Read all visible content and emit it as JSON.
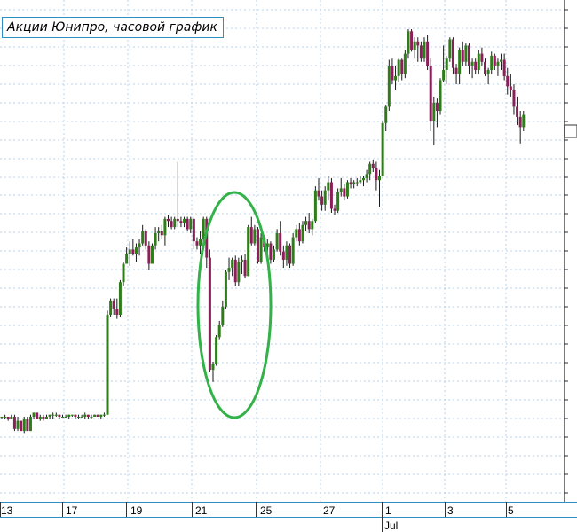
{
  "chart_data": {
    "type": "candlestick",
    "title": "Акции Юнипро, часовой график",
    "x_tick_labels": [
      "13",
      "17",
      "19",
      "21",
      "23",
      "25",
      "27",
      "1",
      "3",
      "5"
    ],
    "month_label": "Jul",
    "y_axis_labels_visible": false,
    "grid": true,
    "colors": {
      "up": "#2e7d1a",
      "down": "#8c1f5a",
      "flat": "#2e7d1a",
      "grid": "#b8d1e8",
      "axis": "#2e8fc4",
      "annotation": "#33b24a"
    },
    "annotation": {
      "type": "ellipse",
      "color": "#33b24a"
    },
    "candles": [
      [
        0.0,
        0.0,
        -1.0,
        0.0
      ],
      [
        0.0,
        1.0,
        -1.0,
        0.0
      ],
      [
        0.0,
        0.0,
        -2.0,
        -1.0
      ],
      [
        -1.0,
        1.0,
        -1.0,
        0.0
      ],
      [
        0.0,
        1.0,
        -7.0,
        -6.0
      ],
      [
        -6.0,
        0.0,
        -7.0,
        -2.0
      ],
      [
        -2.0,
        -2.0,
        -7.0,
        -7.0
      ],
      [
        -7.0,
        0.0,
        -8.0,
        -1.0
      ],
      [
        -1.0,
        0.0,
        -7.0,
        -7.0
      ],
      [
        -7.0,
        1.0,
        -7.0,
        0.0
      ],
      [
        0.0,
        2.0,
        -1.0,
        2.0
      ],
      [
        2.0,
        2.0,
        -1.0,
        -1.0
      ],
      [
        -1.0,
        1.0,
        -2.0,
        0.0
      ],
      [
        0.0,
        1.0,
        -2.0,
        -1.0
      ],
      [
        -1.0,
        1.0,
        -1.0,
        0.0
      ],
      [
        0.0,
        1.0,
        -1.0,
        1.0
      ],
      [
        1.0,
        2.0,
        -1.0,
        1.0
      ],
      [
        1.0,
        2.0,
        0.0,
        1.0
      ],
      [
        1.0,
        1.0,
        -1.0,
        0.0
      ],
      [
        0.0,
        1.0,
        0.0,
        0.0
      ],
      [
        0.0,
        1.0,
        0.0,
        0.0
      ],
      [
        0.0,
        1.0,
        -1.0,
        1.0
      ],
      [
        1.0,
        1.0,
        0.0,
        1.0
      ],
      [
        1.0,
        1.0,
        -1.0,
        0.0
      ],
      [
        0.0,
        1.0,
        -1.0,
        0.0
      ],
      [
        0.0,
        1.0,
        0.0,
        0.0
      ],
      [
        0.0,
        2.0,
        -1.0,
        1.0
      ],
      [
        1.0,
        1.0,
        -1.0,
        0.0
      ],
      [
        0.0,
        1.0,
        -1.0,
        0.0
      ],
      [
        0.0,
        1.0,
        0.0,
        1.0
      ],
      [
        1.0,
        1.0,
        0.0,
        0.0
      ],
      [
        0.0,
        1.0,
        -1.0,
        1.0
      ],
      [
        1.0,
        2.0,
        0.0,
        1.0
      ],
      [
        1.0,
        52.0,
        1.0,
        50.0
      ],
      [
        50.0,
        58.0,
        49.0,
        57.0
      ],
      [
        57.0,
        58.0,
        50.0,
        53.0
      ],
      [
        53.0,
        58.0,
        48.0,
        50.0
      ],
      [
        50.0,
        67.0,
        49.0,
        66.0
      ],
      [
        66.0,
        76.0,
        64.0,
        75.0
      ],
      [
        75.0,
        83.0,
        75.0,
        80.0
      ],
      [
        80.0,
        86.0,
        74.0,
        82.0
      ],
      [
        82.0,
        87.0,
        79.0,
        80.0
      ],
      [
        80.0,
        85.0,
        76.0,
        83.0
      ],
      [
        83.0,
        87.0,
        79.0,
        85.0
      ],
      [
        85.0,
        94.0,
        84.0,
        91.0
      ],
      [
        91.0,
        92.0,
        82.0,
        84.0
      ],
      [
        84.0,
        86.0,
        72.0,
        75.0
      ],
      [
        75.0,
        85.0,
        75.0,
        84.0
      ],
      [
        84.0,
        93.0,
        82.0,
        90.0
      ],
      [
        90.0,
        93.0,
        86.0,
        91.0
      ],
      [
        91.0,
        94.0,
        87.0,
        89.0
      ],
      [
        89.0,
        98.0,
        84.0,
        97.0
      ],
      [
        97.0,
        99.0,
        93.0,
        96.0
      ],
      [
        96.0,
        98.0,
        92.0,
        93.0
      ],
      [
        93.0,
        98.0,
        92.0,
        97.0
      ],
      [
        97.0,
        125.0,
        93.0,
        96.0
      ],
      [
        96.0,
        98.0,
        93.0,
        95.0
      ],
      [
        95.0,
        98.0,
        93.0,
        97.0
      ],
      [
        97.0,
        98.0,
        91.0,
        92.0
      ],
      [
        92.0,
        98.0,
        90.0,
        97.0
      ],
      [
        97.0,
        98.0,
        82.0,
        86.0
      ],
      [
        86.0,
        88.0,
        82.0,
        84.0
      ],
      [
        84.0,
        91.0,
        80.0,
        87.0
      ],
      [
        87.0,
        98.0,
        84.0,
        97.0
      ],
      [
        97.0,
        98.0,
        73.0,
        78.0
      ],
      [
        78.0,
        82.0,
        22.0,
        23.0
      ],
      [
        23.0,
        27.0,
        17.0,
        26.0
      ],
      [
        26.0,
        40.0,
        25.0,
        39.0
      ],
      [
        39.0,
        47.0,
        38.0,
        45.0
      ],
      [
        45.0,
        57.0,
        44.0,
        54.0
      ],
      [
        54.0,
        72.0,
        53.0,
        71.0
      ],
      [
        71.0,
        78.0,
        67.0,
        73.0
      ],
      [
        73.0,
        78.0,
        69.0,
        77.0
      ],
      [
        77.0,
        79.0,
        64.0,
        66.0
      ],
      [
        66.0,
        78.0,
        64.0,
        76.0
      ],
      [
        76.0,
        79.0,
        70.0,
        77.0
      ],
      [
        77.0,
        80.0,
        68.0,
        69.0
      ],
      [
        69.0,
        94.0,
        69.0,
        93.0
      ],
      [
        93.0,
        98.0,
        84.0,
        85.0
      ],
      [
        85.0,
        94.0,
        84.0,
        92.0
      ],
      [
        92.0,
        93.0,
        75.0,
        76.0
      ],
      [
        76.0,
        90.0,
        75.0,
        88.0
      ],
      [
        88.0,
        89.0,
        81.0,
        83.0
      ],
      [
        83.0,
        87.0,
        79.0,
        85.0
      ],
      [
        85.0,
        86.0,
        75.0,
        77.0
      ],
      [
        77.0,
        84.0,
        76.0,
        82.0
      ],
      [
        82.0,
        92.0,
        81.0,
        90.0
      ],
      [
        90.0,
        96.0,
        79.0,
        81.0
      ],
      [
        81.0,
        84.0,
        73.0,
        77.0
      ],
      [
        77.0,
        86.0,
        74.0,
        84.0
      ],
      [
        84.0,
        85.0,
        73.0,
        75.0
      ],
      [
        75.0,
        90.0,
        74.0,
        88.0
      ],
      [
        88.0,
        94.0,
        86.0,
        92.0
      ],
      [
        92.0,
        95.0,
        84.0,
        86.0
      ],
      [
        86.0,
        96.0,
        85.0,
        94.0
      ],
      [
        94.0,
        98.0,
        91.0,
        96.0
      ],
      [
        96.0,
        100.0,
        90.0,
        92.0
      ],
      [
        92.0,
        97.0,
        89.0,
        96.0
      ],
      [
        96.0,
        113.0,
        95.0,
        111.0
      ],
      [
        111.0,
        117.0,
        106.0,
        108.0
      ],
      [
        108.0,
        111.0,
        101.0,
        104.0
      ],
      [
        104.0,
        113.0,
        101.0,
        111.0
      ],
      [
        111.0,
        118.0,
        106.0,
        115.0
      ],
      [
        115.0,
        117.0,
        100.0,
        102.0
      ],
      [
        102.0,
        104.0,
        99.0,
        101.0
      ],
      [
        101.0,
        112.0,
        100.0,
        110.0
      ],
      [
        110.0,
        117.0,
        108.0,
        112.0
      ],
      [
        112.0,
        114.0,
        106.0,
        108.0
      ],
      [
        108.0,
        116.0,
        107.0,
        115.0
      ],
      [
        115.0,
        117.0,
        112.0,
        114.0
      ],
      [
        114.0,
        116.0,
        112.0,
        115.0
      ],
      [
        115.0,
        117.0,
        113.0,
        115.0
      ],
      [
        115.0,
        118.0,
        114.0,
        116.0
      ],
      [
        116.0,
        118.0,
        113.0,
        117.0
      ],
      [
        117.0,
        121.0,
        115.0,
        119.0
      ],
      [
        119.0,
        125.0,
        116.0,
        124.0
      ],
      [
        124.0,
        126.0,
        120.0,
        122.0
      ],
      [
        122.0,
        125.0,
        111.0,
        116.0
      ],
      [
        116.0,
        121.0,
        103.0,
        118.0
      ],
      [
        118.0,
        145.0,
        118.0,
        144.0
      ],
      [
        144.0,
        153.0,
        140.0,
        152.0
      ],
      [
        152.0,
        175.0,
        150.0,
        172.0
      ],
      [
        172.0,
        176.0,
        163.0,
        165.0
      ],
      [
        165.0,
        172.0,
        160.0,
        167.0
      ],
      [
        167.0,
        176.0,
        164.0,
        175.0
      ],
      [
        175.0,
        176.0,
        165.0,
        168.0
      ],
      [
        168.0,
        180.0,
        166.0,
        178.0
      ],
      [
        178.0,
        190.0,
        176.0,
        189.0
      ],
      [
        189.0,
        190.0,
        179.0,
        180.0
      ],
      [
        180.0,
        186.0,
        176.0,
        184.0
      ],
      [
        184.0,
        186.0,
        174.0,
        182.0
      ],
      [
        182.0,
        184.0,
        174.0,
        176.0
      ],
      [
        176.0,
        186.0,
        174.0,
        184.0
      ],
      [
        184.0,
        187.0,
        170.0,
        172.0
      ],
      [
        172.0,
        176.0,
        140.0,
        145.0
      ],
      [
        145.0,
        157.0,
        133.0,
        154.0
      ],
      [
        154.0,
        156.0,
        142.0,
        150.0
      ],
      [
        150.0,
        166.0,
        148.0,
        165.0
      ],
      [
        165.0,
        182.0,
        164.0,
        170.0
      ],
      [
        170.0,
        177.0,
        163.0,
        176.0
      ],
      [
        176.0,
        186.0,
        174.0,
        185.0
      ],
      [
        185.0,
        186.0,
        168.0,
        171.0
      ],
      [
        171.0,
        173.0,
        163.0,
        168.0
      ],
      [
        168.0,
        181.0,
        163.0,
        180.0
      ],
      [
        180.0,
        184.0,
        172.0,
        174.0
      ],
      [
        174.0,
        183.0,
        172.0,
        182.0
      ],
      [
        182.0,
        183.0,
        168.0,
        172.0
      ],
      [
        172.0,
        176.0,
        166.0,
        174.0
      ],
      [
        174.0,
        176.0,
        168.0,
        170.0
      ],
      [
        170.0,
        180.0,
        168.0,
        178.0
      ],
      [
        178.0,
        181.0,
        172.0,
        174.0
      ],
      [
        174.0,
        176.0,
        167.0,
        168.0
      ],
      [
        168.0,
        171.0,
        163.0,
        170.0
      ],
      [
        170.0,
        179.0,
        168.0,
        177.0
      ],
      [
        177.0,
        178.0,
        170.0,
        172.0
      ],
      [
        172.0,
        176.0,
        167.0,
        174.0
      ],
      [
        174.0,
        178.0,
        170.0,
        175.0
      ],
      [
        175.0,
        178.0,
        165.0,
        167.0
      ],
      [
        167.0,
        171.0,
        158.0,
        162.0
      ],
      [
        162.0,
        168.0,
        157.0,
        160.0
      ],
      [
        160.0,
        163.0,
        148.0,
        152.0
      ],
      [
        152.0,
        157.0,
        143.0,
        147.0
      ],
      [
        147.0,
        150.0,
        134.0,
        142.0
      ],
      [
        142.0,
        150.0,
        140.0,
        148.0
      ]
    ]
  }
}
